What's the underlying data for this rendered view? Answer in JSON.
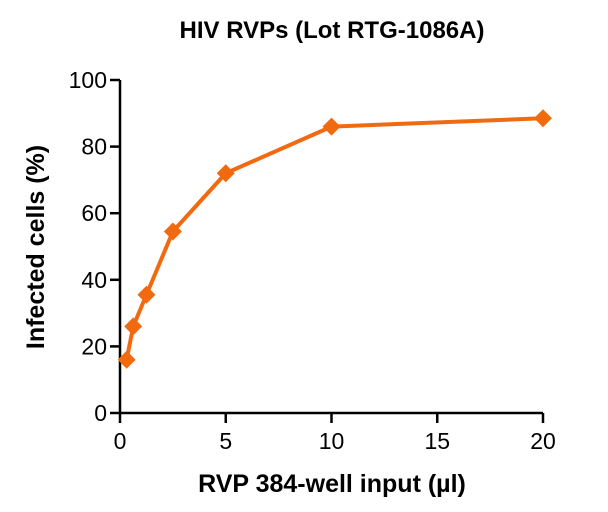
{
  "chart_data": {
    "type": "line",
    "title": "HIV RVPs (Lot RTG-1086A)",
    "xlabel": "RVP 384-well input (µl)",
    "ylabel": "Infected cells (%)",
    "xlim": [
      0,
      20
    ],
    "ylim": [
      0,
      100
    ],
    "xticks": [
      0,
      5,
      10,
      15,
      20
    ],
    "yticks": [
      0,
      20,
      40,
      60,
      80,
      100
    ],
    "grid": false,
    "legend": "none",
    "series": [
      {
        "color": "#f26a10",
        "marker": "diamond",
        "x": [
          0.3125,
          0.625,
          1.25,
          2.5,
          5,
          10,
          20
        ],
        "y": [
          16,
          26,
          35.5,
          54.5,
          72,
          86,
          88.5
        ]
      }
    ]
  }
}
